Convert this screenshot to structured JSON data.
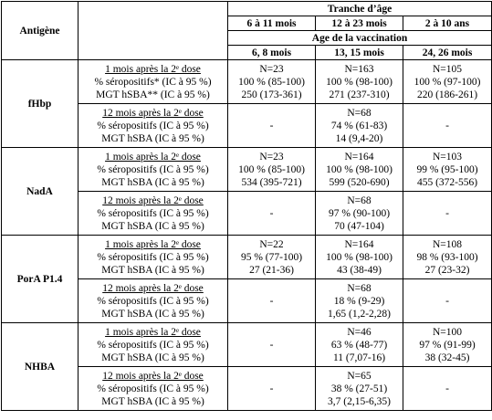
{
  "table": {
    "header": {
      "antigen": "Antigène",
      "group": "Tranche d’âge",
      "ages": [
        "6 à 11 mois",
        "12 à 23 mois",
        "2 à 10 ans"
      ],
      "vaccination": "Age de la vaccination",
      "vaccination_ages": [
        "6, 8 mois",
        "13, 15 mois",
        "24, 26 mois"
      ]
    },
    "rows": [
      {
        "antigen": "fHbp",
        "blocks": [
          {
            "label": [
              "1 mois après la 2ᵉ dose",
              "% séropositifs* (IC à 95 %)",
              "MGT hSBA** (IC à 95 %)"
            ],
            "cells": [
              [
                "N=23",
                "100 % (85-100)",
                "250 (173-361)"
              ],
              [
                "N=163",
                "100 % (98-100)",
                "271 (237-310)"
              ],
              [
                "N=105",
                "100 % (97-100)",
                "220 (186-261)"
              ]
            ]
          },
          {
            "label": [
              "12 mois après la 2ᵉ dose",
              "% séropositifs (IC à 95 %)",
              "MGT hSBA (IC à 95 %)"
            ],
            "cells": [
              [
                "-"
              ],
              [
                "N=68",
                "74 % (61-83)",
                "14 (9,4-20)"
              ],
              [
                "-"
              ]
            ]
          }
        ]
      },
      {
        "antigen": "NadA",
        "blocks": [
          {
            "label": [
              "1 mois après la 2ᵉ dose",
              "% séropositifs (IC à 95 %)",
              "MGT hSBA (IC à 95 %)"
            ],
            "cells": [
              [
                "N=23",
                "100 % (85-100)",
                "534 (395-721)"
              ],
              [
                "N=164",
                "100 % (98-100)",
                "599 (520-690)"
              ],
              [
                "N=103",
                "99 % (95-100)",
                "455 (372-556)"
              ]
            ]
          },
          {
            "label": [
              "12 mois après la 2ᵉ dose",
              "% séropositifs (IC à 95 %)",
              "MGT hSBA (IC à 95 %)"
            ],
            "cells": [
              [
                "-"
              ],
              [
                "N=68",
                "97 % (90-100)",
                "70 (47-104)"
              ],
              [
                "-"
              ]
            ]
          }
        ]
      },
      {
        "antigen": "PorA P1.4",
        "blocks": [
          {
            "label": [
              "1 mois après la 2ᵉ dose",
              "% séropositifs (IC à 95 %)",
              "MGT hSBA (IC à 95 %)"
            ],
            "cells": [
              [
                "N=22",
                "95 % (77-100)",
                "27 (21-36)"
              ],
              [
                "N=164",
                "100 % (98-100)",
                "43 (38-49)"
              ],
              [
                "N=108",
                "98 % (93-100)",
                "27 (23-32)"
              ]
            ]
          },
          {
            "label": [
              "12 mois après la 2ᵉ dose",
              "% séropositifs (IC à 95 %)",
              "MGT hSBA (IC à 95 %)"
            ],
            "cells": [
              [
                "-"
              ],
              [
                "N=68",
                "18 % (9-29)",
                "1,65 (1,2-2,28)"
              ],
              [
                "-"
              ]
            ]
          }
        ]
      },
      {
        "antigen": "NHBA",
        "blocks": [
          {
            "label": [
              "1 mois après la 2ᵉ dose",
              "% séropositifs (IC à 95 %)",
              "MGT hSBA (IC à 95 %)"
            ],
            "cells": [
              [
                "-"
              ],
              [
                "N=46",
                "63 % (48-77)",
                "11 (7,07-16)"
              ],
              [
                "N=100",
                "97 % (91-99)",
                "38 (32-45)"
              ]
            ]
          },
          {
            "label": [
              "12 mois après la 2ᵉ dose",
              "% séropositifs (IC à 95 %)",
              "MGT hSBA (IC à 95 %)"
            ],
            "cells": [
              [
                "-"
              ],
              [
                "N=65",
                "38 % (27-51)",
                "3,7 (2,15-6,35)"
              ],
              [
                "-"
              ]
            ]
          }
        ]
      }
    ]
  }
}
